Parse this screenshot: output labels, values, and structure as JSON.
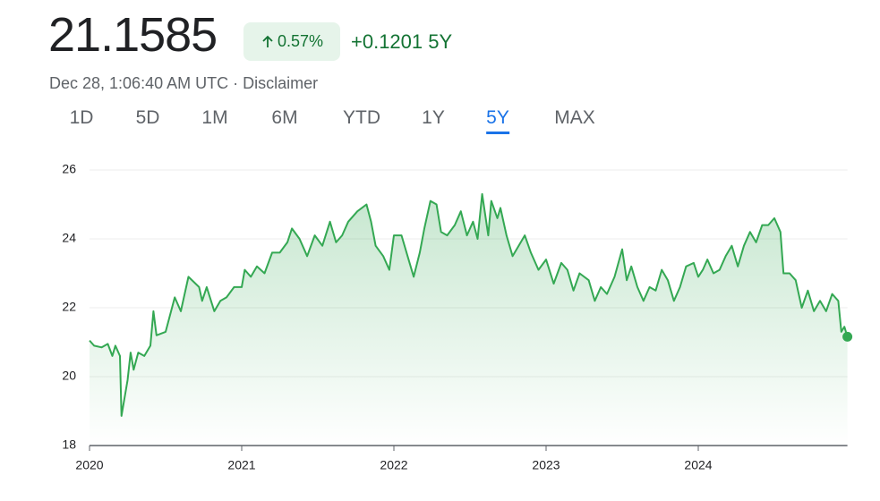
{
  "header": {
    "price": "21.1585",
    "change_percent": "0.57%",
    "change": "+0.1201",
    "period": "5Y",
    "timestamp": "Dec 28, 1:06:40 AM UTC",
    "separator": "·",
    "disclaimer": "Disclaimer"
  },
  "tabs": [
    "1D",
    "5D",
    "1M",
    "6M",
    "YTD",
    "1Y",
    "5Y",
    "MAX"
  ],
  "selected_tab": 6,
  "chart_data": {
    "type": "line",
    "color": "#34a853",
    "x": [
      2020.0,
      2020.03,
      2020.08,
      2020.12,
      2020.15,
      2020.17,
      2020.2,
      2020.21,
      2020.25,
      2020.27,
      2020.29,
      2020.32,
      2020.36,
      2020.4,
      2020.42,
      2020.44,
      2020.5,
      2020.56,
      2020.6,
      2020.65,
      2020.72,
      2020.74,
      2020.77,
      2020.82,
      2020.86,
      2020.9,
      2020.95,
      2021.0,
      2021.02,
      2021.06,
      2021.1,
      2021.15,
      2021.2,
      2021.25,
      2021.3,
      2021.33,
      2021.38,
      2021.43,
      2021.48,
      2021.53,
      2021.58,
      2021.62,
      2021.66,
      2021.7,
      2021.76,
      2021.82,
      2021.85,
      2021.88,
      2021.93,
      2021.97,
      2022.0,
      2022.05,
      2022.09,
      2022.13,
      2022.17,
      2022.2,
      2022.24,
      2022.28,
      2022.31,
      2022.35,
      2022.4,
      2022.44,
      2022.48,
      2022.52,
      2022.55,
      2022.58,
      2022.62,
      2022.64,
      2022.68,
      2022.7,
      2022.74,
      2022.78,
      2022.82,
      2022.86,
      2022.9,
      2022.95,
      2023.0,
      2023.05,
      2023.1,
      2023.14,
      2023.18,
      2023.22,
      2023.28,
      2023.32,
      2023.36,
      2023.4,
      2023.45,
      2023.5,
      2023.53,
      2023.56,
      2023.6,
      2023.64,
      2023.68,
      2023.72,
      2023.76,
      2023.8,
      2023.84,
      2023.88,
      2023.92,
      2023.97,
      2024.0,
      2024.03,
      2024.06,
      2024.1,
      2024.14,
      2024.18,
      2024.22,
      2024.26,
      2024.3,
      2024.34,
      2024.38,
      2024.42,
      2024.46,
      2024.5,
      2024.54,
      2024.56,
      2024.6,
      2024.64,
      2024.68,
      2024.72,
      2024.76,
      2024.8,
      2024.84,
      2024.88,
      2024.92,
      2024.94,
      2024.96,
      2024.98
    ],
    "values": [
      21.05,
      20.9,
      20.85,
      20.95,
      20.6,
      20.9,
      20.6,
      18.86,
      19.9,
      20.7,
      20.2,
      20.7,
      20.6,
      20.9,
      21.9,
      21.2,
      21.3,
      22.3,
      21.9,
      22.9,
      22.6,
      22.2,
      22.6,
      21.9,
      22.2,
      22.3,
      22.6,
      22.6,
      23.1,
      22.9,
      23.2,
      23.0,
      23.6,
      23.6,
      23.9,
      24.3,
      24.0,
      23.5,
      24.1,
      23.8,
      24.5,
      23.9,
      24.1,
      24.5,
      24.8,
      25.0,
      24.5,
      23.8,
      23.5,
      23.1,
      24.1,
      24.1,
      23.5,
      22.9,
      23.6,
      24.3,
      25.1,
      25.0,
      24.2,
      24.1,
      24.4,
      24.8,
      24.1,
      24.5,
      24.0,
      25.3,
      24.1,
      25.1,
      24.6,
      24.9,
      24.1,
      23.5,
      23.8,
      24.1,
      23.6,
      23.1,
      23.4,
      22.7,
      23.3,
      23.1,
      22.5,
      23.0,
      22.8,
      22.2,
      22.6,
      22.4,
      22.9,
      23.7,
      22.8,
      23.2,
      22.6,
      22.2,
      22.6,
      22.5,
      23.1,
      22.8,
      22.2,
      22.6,
      23.2,
      23.3,
      22.9,
      23.1,
      23.4,
      23.0,
      23.1,
      23.5,
      23.8,
      23.2,
      23.8,
      24.2,
      23.9,
      24.4,
      24.4,
      24.6,
      24.2,
      23.0,
      23.0,
      22.8,
      22.0,
      22.5,
      21.9,
      22.2,
      21.9,
      22.4,
      22.2,
      21.3,
      21.45,
      21.1585
    ],
    "xlim": [
      2020,
      2024.98
    ],
    "xticks": [
      2020,
      2021,
      2022,
      2023,
      2024
    ],
    "ylim": [
      18,
      26
    ],
    "yticks": [
      18,
      20,
      22,
      24,
      26
    ],
    "grid": true
  }
}
